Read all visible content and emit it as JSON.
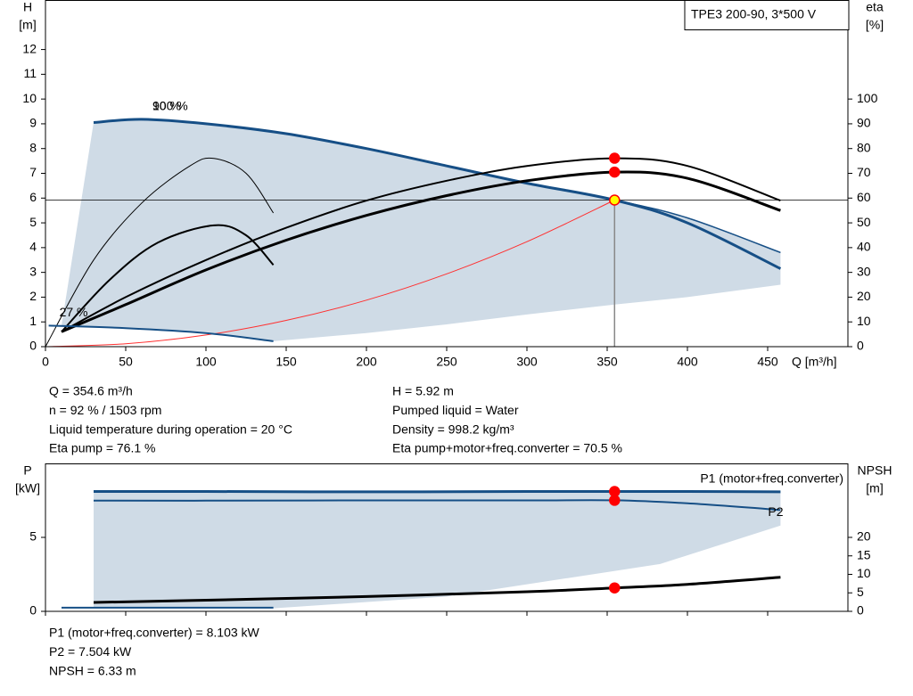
{
  "chart_data": [
    {
      "type": "line",
      "legend_box": "TPE3 200-90, 3*500 V",
      "ylabel": "H",
      "yunit": "[m]",
      "y2label": "eta",
      "y2unit": "[%]",
      "xlabel": "Q [m³/h]",
      "xlim": [
        0,
        500
      ],
      "xticks": [
        0,
        50,
        100,
        150,
        200,
        250,
        300,
        350,
        400,
        450
      ],
      "ylim": [
        0,
        14
      ],
      "yticks": [
        0,
        1,
        2,
        3,
        4,
        5,
        6,
        7,
        8,
        9,
        10,
        11,
        12
      ],
      "y2lim": [
        0,
        140
      ],
      "y2ticks": [
        0,
        10,
        20,
        30,
        40,
        50,
        60,
        70,
        80,
        90,
        100
      ],
      "operating_q": 354.6,
      "area": {
        "color": "#cfdbe6",
        "x": [
          10,
          30,
          60,
          100,
          142,
          200,
          250,
          300,
          354.6,
          400,
          458
        ],
        "upper": [
          0.85,
          9.05,
          9.18,
          9.0,
          8.67,
          8.0,
          7.3,
          6.6,
          5.92,
          5.2,
          3.8
        ],
        "lower": [
          0.85,
          0.8,
          0.7,
          0.6,
          0.22,
          0.55,
          0.9,
          1.3,
          1.7,
          2.0,
          2.5
        ]
      },
      "series": [
        {
          "name": "100 %",
          "color": "#164f86",
          "width": 3,
          "marker": "#ffff00",
          "crosshair": true,
          "x": [
            30,
            60,
            100,
            150,
            200,
            250,
            300,
            354.6,
            400,
            458
          ],
          "values": [
            9.05,
            9.18,
            9.0,
            8.6,
            8.0,
            7.3,
            6.6,
            5.92,
            5.0,
            3.15
          ]
        },
        {
          "name": "90 %",
          "color": "#164f86",
          "width": 1.5,
          "x": [
            30,
            60,
            100,
            150,
            200,
            250,
            300,
            354.6,
            400,
            458
          ],
          "values": [
            9.05,
            9.18,
            9.0,
            8.6,
            8.0,
            7.3,
            6.6,
            5.92,
            5.2,
            3.8
          ]
        },
        {
          "color": "#000000",
          "width": 2,
          "axis": "y2",
          "marker": "#ff0000",
          "x": [
            10,
            50,
            100,
            150,
            200,
            250,
            300,
            354.6,
            400,
            458
          ],
          "values": [
            6,
            20,
            35,
            48,
            59,
            67,
            73,
            76.1,
            73,
            59
          ]
        },
        {
          "color": "#000000",
          "width": 3,
          "axis": "y2",
          "marker": "#ff0000",
          "x": [
            10,
            50,
            100,
            150,
            200,
            250,
            300,
            354.6,
            400,
            458
          ],
          "values": [
            6,
            17,
            31,
            43,
            53,
            61,
            67,
            70.5,
            68,
            55
          ]
        },
        {
          "color": "#000000",
          "width": 1,
          "axis": "y2",
          "x": [
            0,
            30,
            60,
            90,
            105,
            125,
            142
          ],
          "values": [
            0,
            35,
            58,
            73,
            76,
            70,
            54
          ]
        },
        {
          "color": "#000000",
          "width": 2,
          "axis": "y2",
          "x": [
            10,
            40,
            70,
            105,
            125,
            142
          ],
          "values": [
            6,
            27,
            42,
            49,
            45,
            33
          ]
        },
        {
          "color": "#ff3030",
          "width": 1,
          "x": [
            0,
            50,
            100,
            150,
            200,
            250,
            300,
            354.6
          ],
          "values": [
            0,
            0.12,
            0.47,
            1.06,
            1.88,
            2.94,
            4.24,
            5.92
          ]
        },
        {
          "name": "27 %",
          "color": "#164f86",
          "width": 2,
          "x": [
            2,
            50,
            100,
            142
          ],
          "values": [
            0.85,
            0.75,
            0.55,
            0.22
          ]
        }
      ],
      "info_left": [
        "Q = 354.6 m³/h",
        "n = 92 % / 1503 rpm",
        "Liquid temperature during operation = 20 °C",
        "Eta pump = 76.1 %"
      ],
      "info_right": [
        "H = 5.92 m",
        "Pumped liquid = Water",
        "Density = 998.2 kg/m³",
        "Eta pump+motor+freq.converter = 70.5 %"
      ]
    },
    {
      "type": "line",
      "ylabel": "P",
      "yunit": "[kW]",
      "y2label": "NPSH",
      "y2unit": "[m]",
      "xlim": [
        0,
        500
      ],
      "xticks": [
        0,
        50,
        100,
        150,
        200,
        250,
        300,
        350,
        400,
        450
      ],
      "ylim": [
        0,
        10
      ],
      "yticks": [
        0,
        5
      ],
      "y2lim": [
        0,
        40
      ],
      "y2ticks": [
        0,
        5,
        10,
        15,
        20
      ],
      "legend": "upper right",
      "operating_q": 354.6,
      "area": {
        "color": "#cfdbe6",
        "x": [
          30,
          142,
          250,
          383,
          458
        ],
        "upper": [
          8.1,
          8.1,
          8.1,
          8.1,
          8.1
        ],
        "lower": [
          0.2,
          0.2,
          1.0,
          3.2,
          5.8
        ]
      },
      "series": [
        {
          "name": "P1 (motor+freq.converter)",
          "color": "#164f86",
          "width": 3,
          "marker": "#ff0000",
          "x": [
            30,
            100,
            200,
            300,
            354.6,
            400,
            458
          ],
          "values": [
            8.1,
            8.1,
            8.08,
            8.1,
            8.103,
            8.1,
            8.08
          ]
        },
        {
          "name": "P2",
          "color": "#164f86",
          "width": 2,
          "marker": "#ff0000",
          "x": [
            30,
            100,
            200,
            300,
            354.6,
            400,
            458
          ],
          "values": [
            7.48,
            7.48,
            7.5,
            7.5,
            7.504,
            7.3,
            6.85
          ]
        },
        {
          "color": "#000000",
          "width": 3,
          "axis": "y2",
          "marker": "#ff0000",
          "x": [
            30,
            100,
            200,
            300,
            354.6,
            400,
            458
          ],
          "values": [
            2.4,
            3.0,
            4.0,
            5.3,
            6.33,
            7.3,
            9.2
          ]
        },
        {
          "color": "#164f86",
          "width": 2,
          "x": [
            10,
            142
          ],
          "values": [
            0.25,
            0.25
          ]
        }
      ],
      "info_left": [
        "P1 (motor+freq.converter) = 8.103 kW",
        "P2 = 7.504 kW",
        "NPSH = 6.33 m"
      ]
    }
  ]
}
